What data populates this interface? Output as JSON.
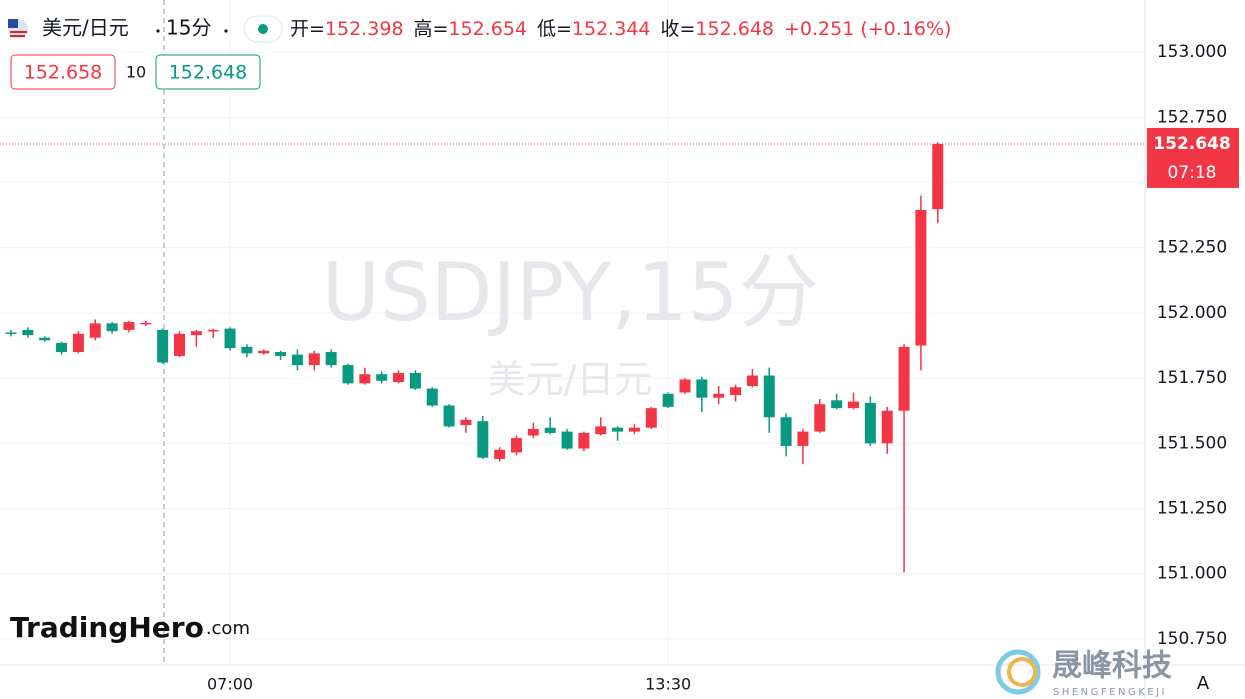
{
  "chart_data": {
    "type": "candlestick",
    "symbol": "美元/日元",
    "interval": "15分",
    "header": [
      {
        "label": "开=",
        "value": "152.398"
      },
      {
        "label": "高=",
        "value": "152.654"
      },
      {
        "label": "低=",
        "value": "152.344"
      },
      {
        "label": "收=",
        "value": "152.648"
      }
    ],
    "change": "+0.251",
    "change_pct": "(+0.16%)",
    "sell": "152.658",
    "spread": 10,
    "buy": "152.648",
    "watermark": "USDJPY,15分",
    "watermark_sub": "美元/日元",
    "logo": {
      "name": "TradingHero",
      "suffix": ".com"
    },
    "brand": {
      "name": "晟峰科技",
      "sub": "SHENGFENGKEJI"
    },
    "auto_button": "A",
    "last_price": 152.648,
    "countdown": "07:18",
    "up_color": "#f23645",
    "down_color": "#089981",
    "grid": true,
    "categories": [
      null,
      null,
      null,
      null,
      null,
      null,
      null,
      null,
      null,
      null,
      null,
      null,
      null,
      "07:00",
      null,
      null,
      null,
      null,
      null,
      null,
      null,
      null,
      null,
      null,
      null,
      null,
      null,
      null,
      null,
      null,
      null,
      null,
      null,
      null,
      null,
      null,
      null,
      null,
      null,
      "13:30",
      null,
      null,
      null,
      null,
      null,
      null,
      null,
      null,
      null,
      null,
      null,
      null,
      null,
      null,
      null,
      null
    ],
    "series": {
      "open": [
        151.925,
        151.935,
        151.905,
        151.885,
        151.85,
        151.905,
        151.96,
        151.935,
        151.96,
        151.935,
        151.835,
        151.915,
        151.93,
        151.94,
        151.87,
        151.845,
        151.85,
        151.84,
        151.8,
        151.85,
        151.8,
        151.73,
        151.765,
        151.735,
        151.77,
        151.71,
        151.645,
        151.57,
        151.585,
        151.44,
        151.465,
        151.53,
        151.56,
        151.545,
        151.48,
        151.535,
        151.56,
        151.545,
        151.56,
        151.69,
        151.695,
        151.745,
        151.675,
        151.685,
        151.72,
        151.76,
        151.6,
        151.49,
        151.545,
        151.665,
        151.635,
        151.655,
        151.5,
        151.625,
        151.875,
        152.398
      ],
      "high": [
        151.935,
        151.945,
        151.91,
        151.89,
        151.93,
        151.975,
        151.965,
        151.97,
        151.97,
        151.94,
        151.93,
        151.935,
        151.94,
        151.945,
        151.88,
        151.86,
        151.855,
        151.86,
        151.855,
        151.86,
        151.805,
        151.79,
        151.775,
        151.78,
        151.78,
        151.715,
        151.65,
        151.6,
        151.605,
        151.485,
        151.53,
        151.58,
        151.6,
        151.555,
        151.545,
        151.6,
        151.565,
        151.575,
        151.64,
        151.695,
        151.75,
        151.755,
        151.72,
        151.725,
        151.785,
        151.79,
        151.615,
        151.555,
        151.67,
        151.69,
        151.695,
        151.68,
        151.64,
        151.88,
        152.45,
        152.654
      ],
      "low": [
        151.91,
        151.905,
        151.89,
        151.84,
        151.845,
        151.895,
        151.92,
        151.925,
        151.95,
        151.805,
        151.83,
        151.87,
        151.905,
        151.855,
        151.83,
        151.84,
        151.82,
        151.78,
        151.78,
        151.79,
        151.725,
        151.725,
        151.73,
        151.73,
        151.705,
        151.64,
        151.56,
        151.54,
        151.44,
        151.43,
        151.455,
        151.52,
        151.535,
        151.475,
        151.47,
        151.53,
        151.51,
        151.535,
        151.555,
        151.635,
        151.69,
        151.62,
        151.65,
        151.66,
        151.715,
        151.54,
        151.45,
        151.42,
        151.54,
        151.63,
        151.63,
        151.49,
        151.46,
        151.005,
        151.78,
        152.344
      ],
      "close": [
        151.92,
        151.915,
        151.895,
        151.85,
        151.92,
        151.96,
        151.93,
        151.965,
        151.962,
        151.81,
        151.92,
        151.93,
        151.935,
        151.865,
        151.845,
        151.855,
        151.835,
        151.8,
        151.845,
        151.8,
        151.73,
        151.765,
        151.74,
        151.77,
        151.71,
        151.645,
        151.565,
        151.59,
        151.445,
        151.475,
        151.52,
        151.555,
        151.54,
        151.48,
        151.54,
        151.565,
        151.545,
        151.56,
        151.635,
        151.64,
        151.745,
        151.675,
        151.69,
        151.715,
        151.76,
        151.6,
        151.49,
        151.545,
        151.65,
        151.635,
        151.66,
        151.5,
        151.625,
        151.87,
        152.395,
        152.648
      ]
    },
    "ylim": [
      150.65,
      153.2
    ],
    "yticks": [
      {
        "value": 150.75,
        "label": "150.750"
      },
      {
        "value": 151.0,
        "label": "151.000"
      },
      {
        "value": 151.25,
        "label": "151.250"
      },
      {
        "value": 151.5,
        "label": "151.500"
      },
      {
        "value": 151.75,
        "label": "151.750"
      },
      {
        "value": 152.0,
        "label": "152.000"
      },
      {
        "value": 152.25,
        "label": "152.250"
      },
      {
        "value": 152.5,
        "label": "152.500"
      },
      {
        "value": 152.75,
        "label": "152.750"
      },
      {
        "value": 153.0,
        "label": "153.000"
      }
    ]
  }
}
